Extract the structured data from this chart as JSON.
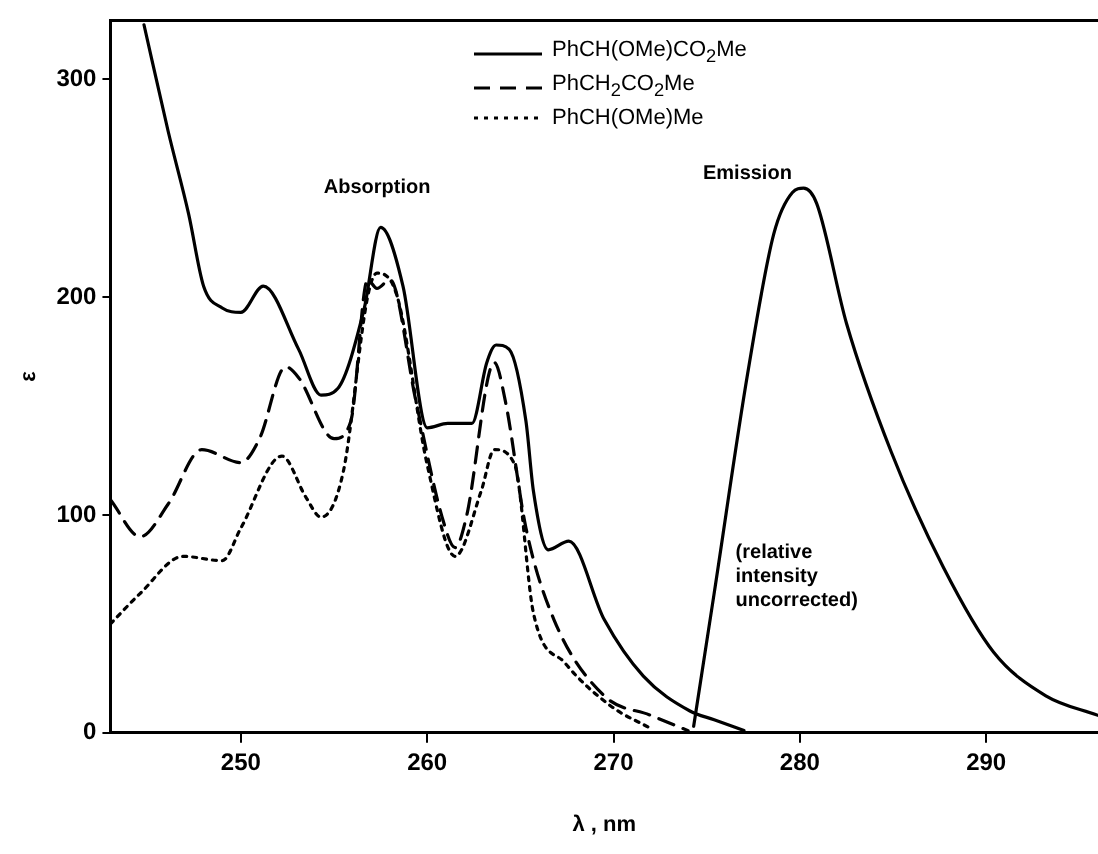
{
  "chart_data": {
    "type": "line",
    "xlabel": "λ , nm",
    "ylabel": "ε",
    "xlim": [
      243,
      296
    ],
    "ylim": [
      0,
      327
    ],
    "xticks": [
      250,
      260,
      270,
      280,
      290
    ],
    "yticks": [
      0,
      100,
      200,
      300
    ],
    "grid": false,
    "legend": "top",
    "marker": "none",
    "annotations": [
      "Absorption",
      "Emission",
      "(relative intensity uncorrected)"
    ],
    "series": [
      {
        "name": "PhCH(OMe)CO$_{2}$Me",
        "color": "#000000",
        "line_style": "solid",
        "x": [
          244.8,
          246.1,
          247.2,
          248.0,
          249.0,
          250.0,
          251.2,
          253.1,
          254.3,
          255.2,
          256.6,
          257.5,
          258.7,
          260.0,
          261.1,
          262.4,
          263.2,
          263.7,
          264.4,
          265.3,
          265.7,
          266.5,
          267.6,
          269.5,
          271.6,
          274.1,
          275.4,
          277.0
        ],
        "values": [
          325,
          276,
          238,
          205,
          195,
          193,
          205,
          176,
          155,
          158,
          194,
          232,
          205,
          140,
          142,
          142,
          170,
          178,
          176,
          143,
          111,
          84,
          88,
          52,
          26,
          10,
          6,
          1
        ]
      },
      {
        "name": "PhCH$_{2}$CO$_{2}$Me",
        "color": "#000000",
        "line_style": "dashed",
        "x": [
          243.0,
          244.6,
          246.1,
          247.9,
          250.0,
          251.0,
          252.4,
          253.1,
          255.0,
          255.9,
          256.8,
          257.3,
          258.0,
          259.4,
          260.8,
          261.5,
          262.1,
          263.6,
          264.2,
          265.3,
          266.8,
          269.5,
          272.0,
          274.0
        ],
        "values": [
          107,
          90,
          105,
          130,
          124,
          135,
          168,
          163,
          135,
          143,
          208,
          204,
          208,
          152,
          99,
          85,
          99,
          170,
          152,
          94,
          52,
          17,
          8,
          1
        ]
      },
      {
        "name": "PhCH(OMe)Me",
        "color": "#000000",
        "line_style": "dotted",
        "x": [
          243.0,
          244.6,
          246.9,
          249.0,
          250.0,
          252.2,
          253.5,
          254.3,
          255.5,
          256.8,
          257.3,
          258.4,
          260.0,
          261.5,
          262.9,
          263.6,
          264.7,
          265.7,
          267.4,
          269.9,
          272.0
        ],
        "values": [
          50,
          64,
          81,
          79,
          94,
          127,
          108,
          99,
          120,
          200,
          211,
          200,
          123,
          81,
          111,
          130,
          123,
          55,
          32,
          12,
          2
        ]
      },
      {
        "color": "#000000",
        "line_style": "solid",
        "x": [
          274.3,
          275.4,
          277.2,
          278.6,
          279.6,
          280.2,
          280.9,
          282.5,
          284.9,
          287.7,
          290.4,
          293.2,
          296.0
        ],
        "values": [
          3,
          64,
          165,
          229,
          248,
          250,
          243,
          188,
          129,
          76,
          37,
          17,
          8
        ]
      }
    ]
  }
}
